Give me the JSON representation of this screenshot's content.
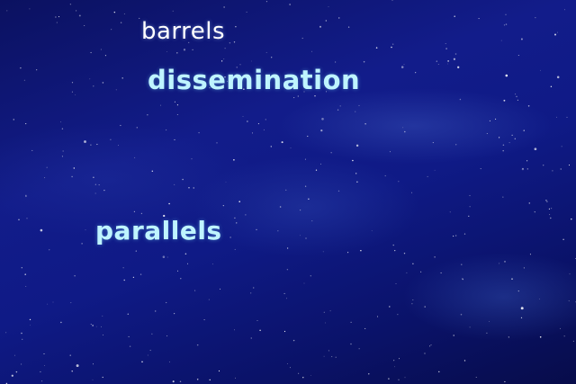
{
  "overlay_text": {
    "word_1": "barrels",
    "word_2": "dissemination",
    "word_3": "parallels"
  },
  "colors": {
    "sky_dark": "#070c4a",
    "sky_mid": "#121c8a",
    "text_primary": "#ffffff",
    "text_accent": "#bff4ff"
  }
}
